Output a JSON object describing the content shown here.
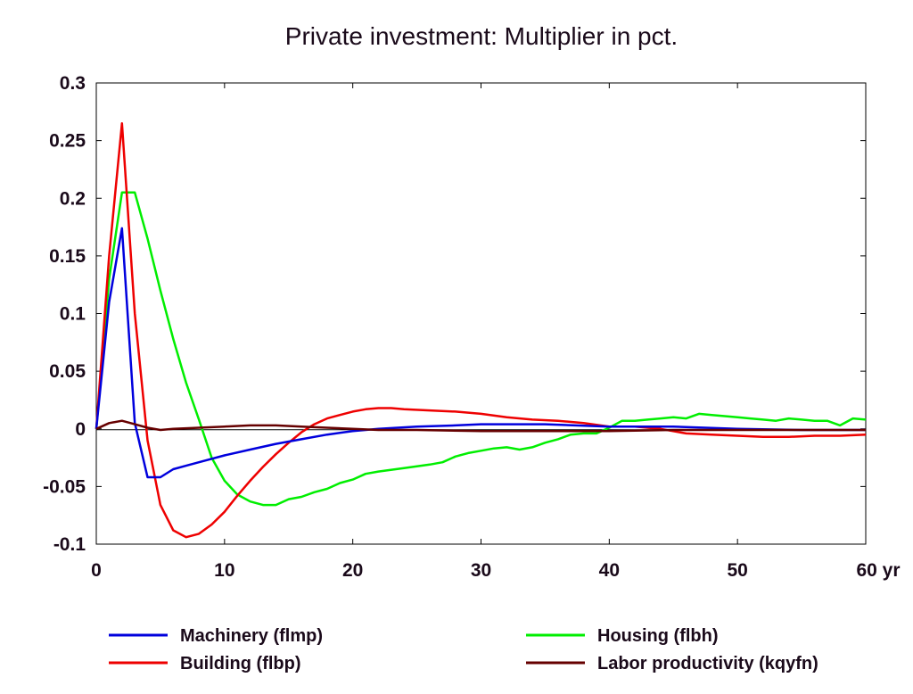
{
  "chart_data": {
    "type": "line",
    "title": "Private investment: Multiplier in pct.",
    "xlabel": "",
    "ylabel": "",
    "x_unit_label": "yr",
    "xlim": [
      0,
      60
    ],
    "ylim": [
      -0.1,
      0.3
    ],
    "x_ticks": [
      0,
      10,
      20,
      30,
      40,
      50,
      60
    ],
    "x_tick_labels": [
      "0",
      "10",
      "20",
      "30",
      "40",
      "50",
      "60 yr"
    ],
    "y_ticks": [
      -0.1,
      -0.05,
      0,
      0.05,
      0.1,
      0.15,
      0.2,
      0.25,
      0.3
    ],
    "y_tick_labels": [
      "-0.1",
      "-0.05",
      "0",
      "0.05",
      "0.1",
      "0.15",
      "0.2",
      "0.25",
      "0.3"
    ],
    "grid": false,
    "legend_position": "bottom",
    "series": [
      {
        "name": "Machinery (flmp)",
        "color": "#0000dd",
        "x": [
          0,
          1,
          2,
          3,
          4,
          5,
          6,
          7,
          8,
          10,
          12,
          14,
          16,
          18,
          20,
          22,
          25,
          28,
          30,
          35,
          40,
          45,
          50,
          55,
          60
        ],
        "y": [
          0,
          0.11,
          0.174,
          0.005,
          -0.042,
          -0.042,
          -0.035,
          -0.032,
          -0.029,
          -0.023,
          -0.018,
          -0.013,
          -0.009,
          -0.005,
          -0.002,
          0.0,
          0.002,
          0.003,
          0.004,
          0.004,
          0.002,
          0.002,
          0.0,
          -0.001,
          -0.001
        ]
      },
      {
        "name": "Housing (flbh)",
        "color": "#00ee00",
        "x": [
          0,
          1,
          2,
          3,
          4,
          5,
          6,
          7,
          8,
          9,
          10,
          11,
          12,
          13,
          14,
          15,
          16,
          17,
          18,
          19,
          20,
          21,
          22,
          24,
          26,
          27,
          28,
          29,
          30,
          31,
          32,
          33,
          34,
          35,
          36,
          37,
          38,
          39,
          40,
          41,
          42,
          43,
          44,
          45,
          46,
          47,
          48,
          49,
          50,
          51,
          52,
          53,
          54,
          55,
          56,
          57,
          58,
          59,
          60
        ],
        "y": [
          0,
          0.13,
          0.205,
          0.205,
          0.165,
          0.12,
          0.078,
          0.04,
          0.008,
          -0.025,
          -0.045,
          -0.057,
          -0.063,
          -0.066,
          -0.066,
          -0.061,
          -0.059,
          -0.055,
          -0.052,
          -0.047,
          -0.044,
          -0.039,
          -0.037,
          -0.034,
          -0.031,
          -0.029,
          -0.024,
          -0.021,
          -0.019,
          -0.017,
          -0.016,
          -0.018,
          -0.016,
          -0.012,
          -0.009,
          -0.005,
          -0.004,
          -0.004,
          0.001,
          0.007,
          0.007,
          0.008,
          0.009,
          0.01,
          0.009,
          0.013,
          0.012,
          0.011,
          0.01,
          0.009,
          0.008,
          0.007,
          0.009,
          0.008,
          0.007,
          0.007,
          0.003,
          0.009,
          0.008
        ]
      },
      {
        "name": "Building (flbp)",
        "color": "#ee0000",
        "x": [
          0,
          1,
          2,
          3,
          4,
          5,
          6,
          7,
          8,
          9,
          10,
          11,
          12,
          13,
          14,
          15,
          16,
          17,
          18,
          19,
          20,
          21,
          22,
          23,
          24,
          26,
          28,
          30,
          32,
          34,
          36,
          38,
          40,
          42,
          44,
          46,
          48,
          50,
          52,
          54,
          56,
          58,
          60
        ],
        "y": [
          0,
          0.15,
          0.265,
          0.1,
          -0.01,
          -0.066,
          -0.088,
          -0.094,
          -0.091,
          -0.083,
          -0.072,
          -0.058,
          -0.045,
          -0.033,
          -0.022,
          -0.012,
          -0.003,
          0.004,
          0.009,
          0.012,
          0.015,
          0.017,
          0.018,
          0.018,
          0.017,
          0.016,
          0.015,
          0.013,
          0.01,
          0.008,
          0.007,
          0.005,
          0.002,
          0.002,
          0.0,
          -0.004,
          -0.005,
          -0.006,
          -0.007,
          -0.007,
          -0.006,
          -0.006,
          -0.005
        ]
      },
      {
        "name": "Labor productivity (kqyfn)",
        "color": "#660000",
        "x": [
          0,
          1,
          2,
          3,
          4,
          5,
          6,
          8,
          10,
          12,
          14,
          16,
          18,
          20,
          22,
          25,
          30,
          35,
          40,
          45,
          50,
          55,
          60
        ],
        "y": [
          0,
          0.005,
          0.007,
          0.004,
          0.001,
          -0.001,
          0.0,
          0.001,
          0.002,
          0.003,
          0.003,
          0.002,
          0.001,
          0.0,
          -0.001,
          -0.001,
          -0.002,
          -0.002,
          -0.002,
          -0.001,
          -0.001,
          -0.001,
          -0.001
        ]
      }
    ]
  }
}
